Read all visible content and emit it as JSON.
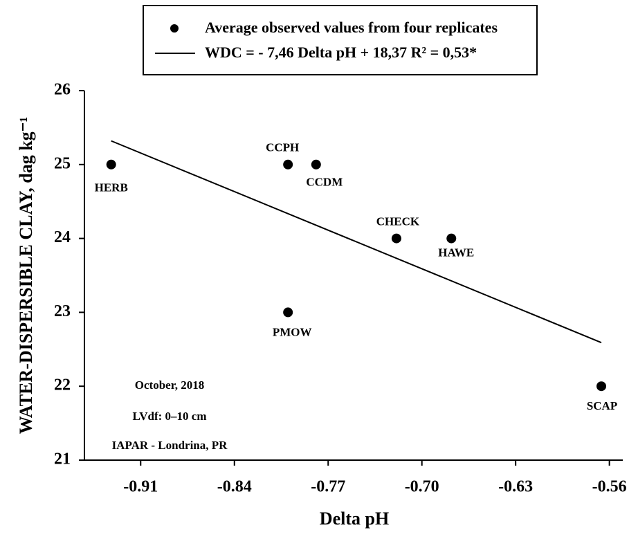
{
  "chart_data": {
    "type": "scatter",
    "x_label": "Delta pH",
    "y_label": "WATER-DISPERSIBLE CLAY, dag kg⁻¹",
    "xlim": [
      -0.952,
      -0.55
    ],
    "ylim": [
      21,
      26
    ],
    "xticks": [
      -0.91,
      -0.84,
      -0.77,
      {
        "value": -0.7,
        "label": "-0.70"
      },
      -0.63,
      -0.56
    ],
    "yticks": [
      21,
      22,
      23,
      24,
      25,
      26
    ],
    "series": [
      {
        "name": "Average observed values from four replicates",
        "color": "#000000",
        "point_labels": [
          "HERB",
          "CCPH",
          "CCDM",
          "CHECK",
          "HAWE",
          "PMOW",
          "SCAP"
        ],
        "x": [
          -0.932,
          -0.8,
          -0.779,
          -0.719,
          -0.678,
          -0.8,
          -0.566
        ],
        "values": [
          25,
          25,
          25,
          24,
          24,
          23,
          22
        ]
      },
      {
        "name": "WDC = - 7,46 Delta pH + 18,37  R² = 0,53*",
        "color": "#000000",
        "type": "line",
        "x": [
          -0.932,
          -0.566
        ],
        "values": [
          25.32,
          22.59
        ]
      }
    ],
    "annotations": [
      "October, 2018",
      "LVdf: 0–10 cm",
      "IAPAR - Londrina, PR"
    ]
  }
}
